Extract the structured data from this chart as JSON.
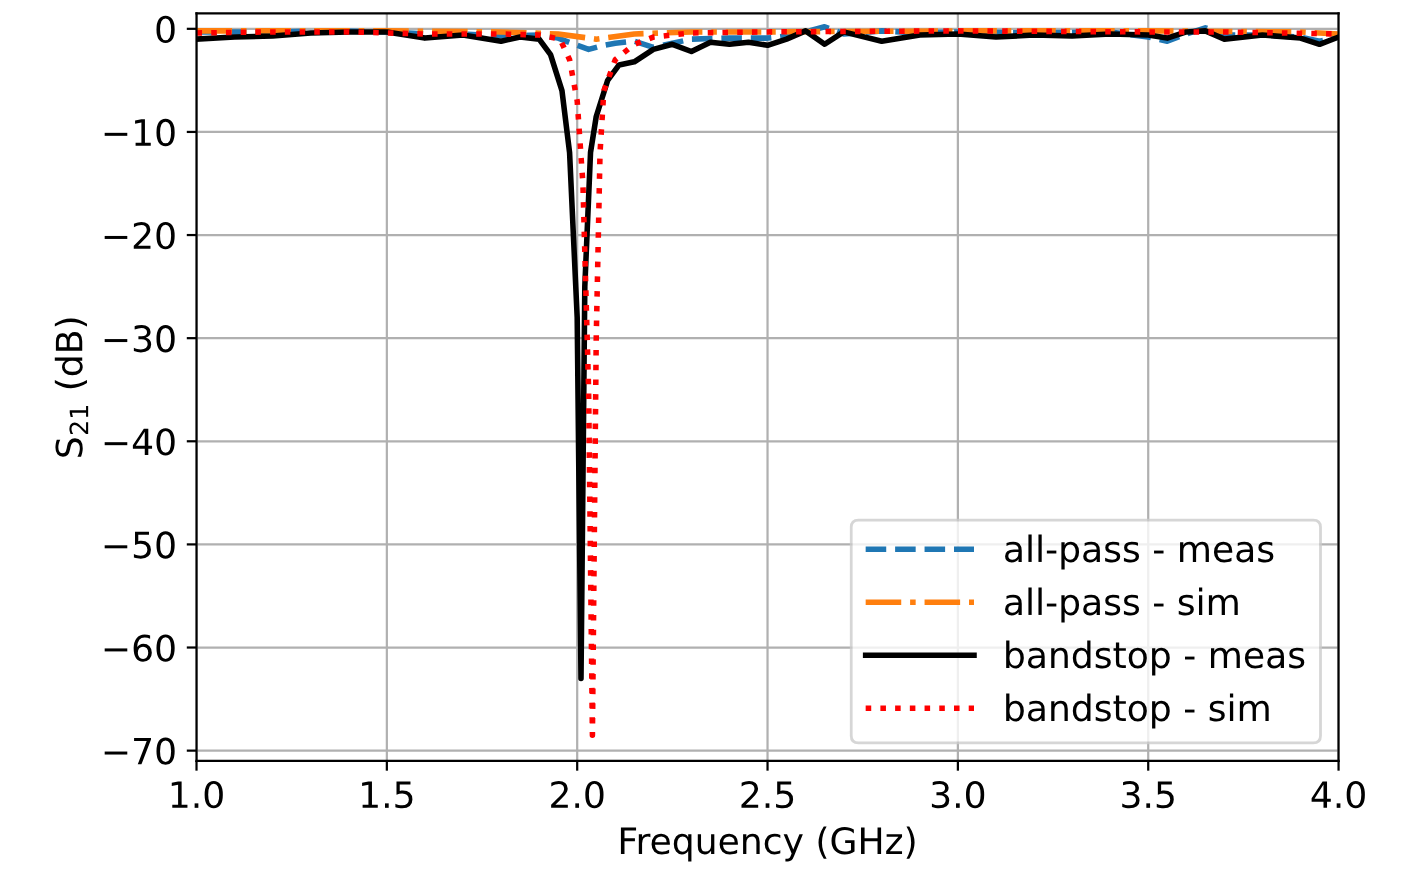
{
  "chart_data": {
    "type": "line",
    "xlabel": "Frequency (GHz)",
    "ylabel": "S$_{21}$ (dB)",
    "xlim": [
      1.0,
      4.0
    ],
    "ylim": [
      -71,
      1.5
    ],
    "xticks": [
      {
        "value": 1.0,
        "label": "1.0"
      },
      {
        "value": 1.5,
        "label": "1.5"
      },
      {
        "value": 2.0,
        "label": "2.0"
      },
      {
        "value": 2.5,
        "label": "2.5"
      },
      {
        "value": 3.0,
        "label": "3.0"
      },
      {
        "value": 3.5,
        "label": "3.5"
      },
      {
        "value": 4.0,
        "label": "4.0"
      }
    ],
    "yticks": [
      -70,
      -60,
      -50,
      -40,
      -30,
      -20,
      -10,
      0
    ],
    "grid": true,
    "legend": "bottom right",
    "series": [
      {
        "name": "all-pass - meas",
        "color": "#1f77b4",
        "line_style": "dashed",
        "x": [
          1.0,
          1.2,
          1.35,
          1.5,
          1.6,
          1.7,
          1.8,
          1.9,
          1.95,
          2.0,
          2.03,
          2.07,
          2.1,
          2.15,
          2.2,
          2.3,
          2.4,
          2.5,
          2.55,
          2.6,
          2.65,
          2.7,
          2.8,
          2.9,
          3.0,
          3.2,
          3.4,
          3.5,
          3.55,
          3.6,
          3.65,
          3.7,
          3.8,
          3.9,
          3.95,
          4.0
        ],
        "values": [
          -0.3,
          -0.3,
          -0.2,
          -0.3,
          -0.5,
          -0.5,
          -0.7,
          -0.6,
          -0.9,
          -1.6,
          -2.0,
          -1.6,
          -1.4,
          -1.2,
          -1.8,
          -1.0,
          -0.9,
          -0.9,
          -0.7,
          -0.3,
          0.2,
          -0.5,
          -0.2,
          -0.4,
          -0.3,
          -0.4,
          -0.3,
          -0.8,
          -1.2,
          -0.5,
          0.1,
          -0.6,
          -0.6,
          -0.8,
          -1.2,
          -0.8
        ]
      },
      {
        "name": "all-pass - sim",
        "color": "#ff7f0e",
        "line_style": "dashdot",
        "x": [
          1.0,
          1.5,
          1.8,
          1.95,
          2.05,
          2.15,
          2.3,
          2.5,
          3.0,
          3.5,
          3.9,
          4.0
        ],
        "values": [
          -0.2,
          -0.2,
          -0.3,
          -0.5,
          -1.0,
          -0.5,
          -0.3,
          -0.3,
          -0.2,
          -0.2,
          -0.3,
          -0.5
        ]
      },
      {
        "name": "bandstop - meas",
        "color": "#000000",
        "line_style": "solid",
        "x": [
          1.0,
          1.1,
          1.2,
          1.3,
          1.4,
          1.5,
          1.6,
          1.7,
          1.8,
          1.85,
          1.9,
          1.93,
          1.96,
          1.98,
          2.0,
          2.01,
          2.02,
          2.035,
          2.05,
          2.08,
          2.11,
          2.15,
          2.2,
          2.25,
          2.3,
          2.35,
          2.4,
          2.45,
          2.5,
          2.55,
          2.6,
          2.65,
          2.7,
          2.8,
          2.9,
          3.0,
          3.1,
          3.2,
          3.3,
          3.4,
          3.5,
          3.55,
          3.6,
          3.65,
          3.7,
          3.8,
          3.9,
          3.95,
          4.0
        ],
        "values": [
          -1.0,
          -0.8,
          -0.7,
          -0.4,
          -0.3,
          -0.3,
          -0.9,
          -0.6,
          -1.2,
          -0.8,
          -1.0,
          -2.5,
          -6.0,
          -12.0,
          -28.0,
          -63.0,
          -25.0,
          -12.0,
          -8.5,
          -5.0,
          -3.5,
          -3.2,
          -2.0,
          -1.5,
          -2.2,
          -1.3,
          -1.5,
          -1.3,
          -1.6,
          -1.0,
          -0.2,
          -1.5,
          -0.3,
          -1.2,
          -0.6,
          -0.5,
          -0.8,
          -0.6,
          -0.7,
          -0.5,
          -0.6,
          -0.9,
          -0.3,
          -0.2,
          -1.0,
          -0.6,
          -0.9,
          -1.5,
          -0.8
        ]
      },
      {
        "name": "bandstop - sim",
        "color": "#ff0000",
        "line_style": "dotted",
        "x": [
          1.0,
          1.2,
          1.4,
          1.6,
          1.8,
          1.9,
          1.955,
          1.98,
          2.0,
          2.015,
          2.03,
          2.04,
          2.05,
          2.06,
          2.07,
          2.1,
          2.15,
          2.2,
          2.3,
          2.5,
          3.0,
          3.5,
          3.7,
          4.0
        ],
        "values": [
          -0.4,
          -0.3,
          -0.3,
          -0.5,
          -0.5,
          -0.6,
          -1.0,
          -3.0,
          -7.0,
          -15.0,
          -35.0,
          -68.5,
          -30.0,
          -12.0,
          -6.0,
          -3.0,
          -1.5,
          -0.8,
          -0.4,
          -0.3,
          -0.2,
          -0.3,
          -0.3,
          -0.5
        ]
      }
    ]
  }
}
